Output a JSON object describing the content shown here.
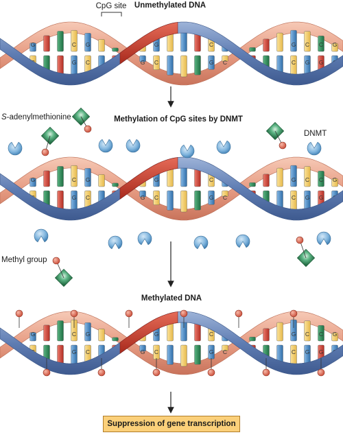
{
  "panels": [
    {
      "title": "Unmethylated DNA",
      "methylated": false
    },
    {
      "title": "Methylation of CpG sites by DNMT",
      "methylated": false
    },
    {
      "title": "Methylated DNA",
      "methylated": true
    }
  ],
  "labels": {
    "cpg_site": "CpG site",
    "sam_prefix": "S",
    "sam_rest": "-adenylmethionine",
    "dnmt": "DNMT",
    "methyl_group": "Methyl group"
  },
  "result": "Suppression of gene transcription",
  "bases": {
    "top_strand": [
      "C",
      "G",
      "",
      "",
      "C",
      "G",
      "",
      "",
      "",
      "C",
      "G",
      "",
      "",
      "",
      "C",
      "G",
      "",
      "",
      "",
      "",
      "G",
      "C",
      "C",
      "G"
    ],
    "bottom_strand": [
      "G",
      "C",
      "",
      "",
      "G",
      "C",
      "",
      "",
      "",
      "G",
      "C",
      "",
      "",
      "",
      "G",
      "C",
      "",
      "",
      "",
      "",
      "C",
      "G",
      "G",
      "C"
    ]
  },
  "colors": {
    "blue_backbone": "#6e88b8",
    "salmon_backbone": "#e8a78f",
    "red_backbone": "#cc3a2a",
    "base_yellow": "#f7d36b",
    "base_blue": "#4d8cc9",
    "base_green": "#2f8f5b",
    "base_red": "#d4453b",
    "methyl_ball": "#e0705a",
    "sam_green": "#3f9e6a",
    "dnmt_blue": "#7fb4dd",
    "result_box": "#fbd07a"
  },
  "icons": [
    "cpg-bracket-icon",
    "sam-molecule-icon",
    "dnmt-enzyme-icon",
    "methyl-group-icon",
    "arrow-down-icon"
  ]
}
